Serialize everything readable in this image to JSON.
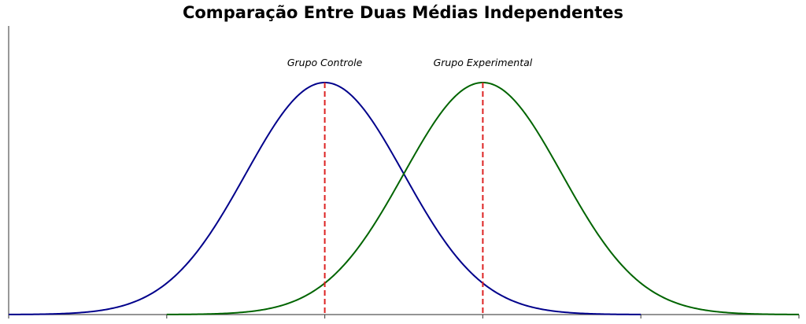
{
  "chart_data": {
    "type": "line",
    "title": "Comparação Entre Duas Médias Independentes",
    "xlabel": "",
    "ylabel": "",
    "xlim": [
      -5,
      5
    ],
    "ylim": [
      0,
      1.0
    ],
    "x_ticks": [
      -5,
      -3,
      -1,
      1,
      3,
      5
    ],
    "show_tick_labels": false,
    "grid": false,
    "series": [
      {
        "name": "Grupo Controle",
        "kind": "normal_pdf",
        "mean": -1,
        "sd": 1,
        "peak": 1.0,
        "x_range": [
          -5,
          3
        ],
        "color": "#00008b"
      },
      {
        "name": "Grupo Experimental",
        "kind": "normal_pdf",
        "mean": 1,
        "sd": 1,
        "peak": 1.0,
        "x_range": [
          -3,
          5
        ],
        "color": "#006400"
      }
    ],
    "mean_lines": {
      "color": "#dd2222",
      "style": "dashed"
    },
    "annotations": [
      {
        "text": "Grupo Controle",
        "x": -1
      },
      {
        "text": "Grupo Experimental",
        "x": 1
      }
    ]
  }
}
